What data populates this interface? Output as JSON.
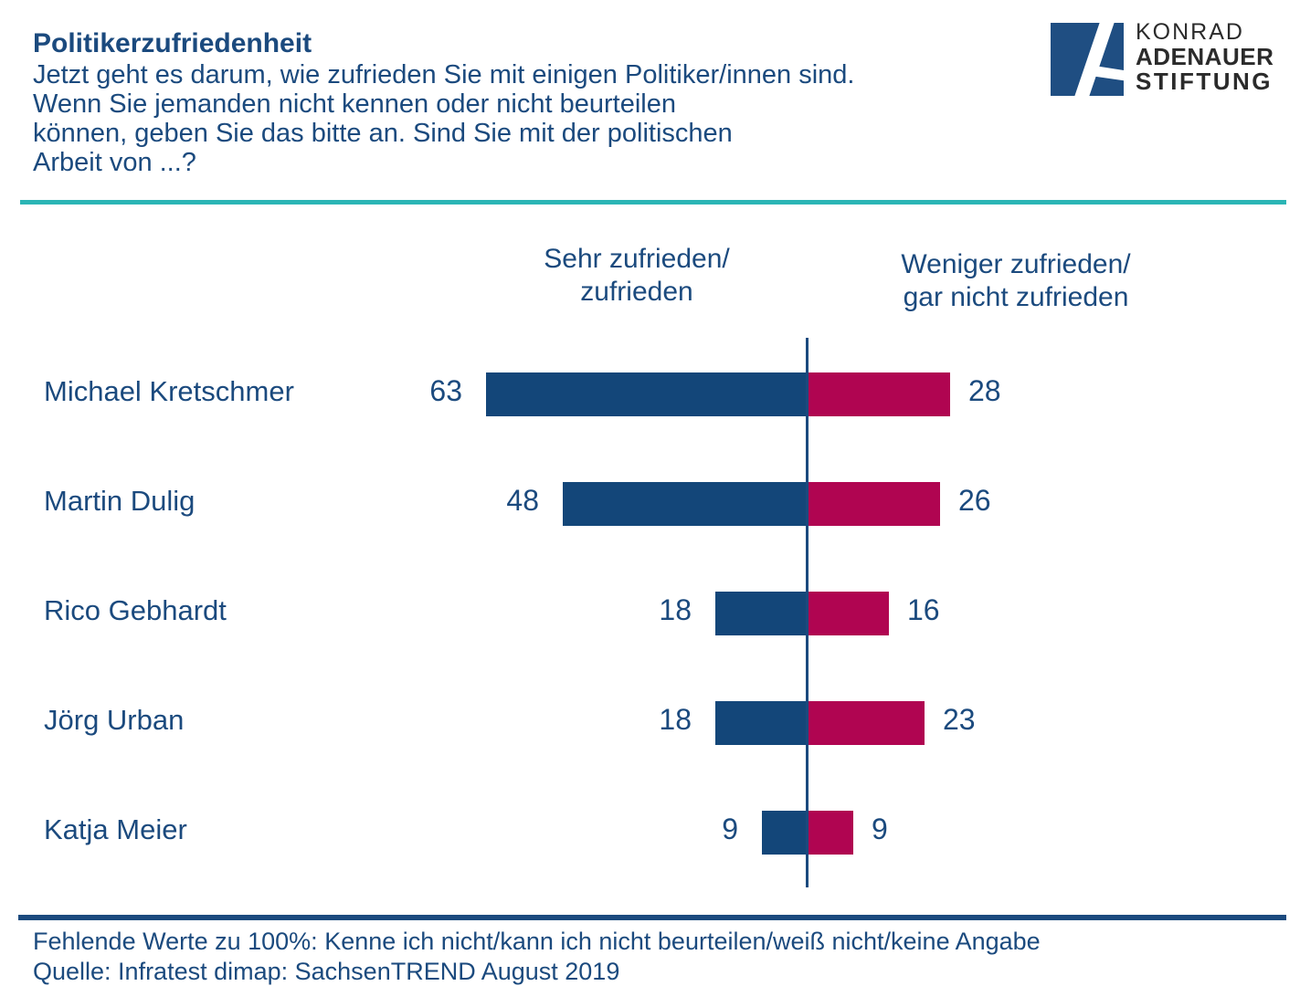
{
  "header": {
    "title": "Politikerzufriedenheit",
    "question": "Jetzt geht es darum, wie zufrieden Sie mit einigen Politiker/innen sind.\nWenn Sie jemanden nicht kennen oder nicht beurteilen\nkönnen, geben Sie das bitte an. Sind Sie mit der politischen\nArbeit von ...?"
  },
  "logo": {
    "line1": "KONRAD",
    "line2": "ADENAUER",
    "line3": "STIFTUNG"
  },
  "chart_data": {
    "type": "bar",
    "variant": "diverging-horizontal",
    "title": "Politikerzufriedenheit",
    "categories": [
      "Michael Kretschmer",
      "Martin Dulig",
      "Rico Gebhardt",
      "Jörg Urban",
      "Katja Meier"
    ],
    "series": [
      {
        "name": "Sehr zufrieden/\nzufrieden",
        "side": "left",
        "color": "#134679",
        "values": [
          63,
          48,
          18,
          18,
          9
        ]
      },
      {
        "name": "Weniger zufrieden/\ngar nicht zufrieden",
        "side": "right",
        "color": "#b00551",
        "values": [
          28,
          26,
          16,
          23,
          9
        ]
      }
    ],
    "value_labels": true,
    "axis": {
      "center_value": 0,
      "xlim": [
        -70,
        40
      ],
      "gridlines": false,
      "center_axis_line": true
    },
    "legend_position": "top-as-column-headers",
    "unit": "percent"
  },
  "footer": {
    "note": "Fehlende Werte zu 100%: Kenne ich nicht/kann ich nicht beurteilen/weiß nicht/keine Angabe",
    "source": "Quelle: Infratest dimap: SachsenTREND August 2019"
  },
  "colors": {
    "text": "#1b4a7e",
    "bar-blue": "#134679",
    "bar-red": "#b00551",
    "teal": "#2bb5b5",
    "rule": "#1b4a7e",
    "logo-blue": "#1f4e82",
    "logo-text": "#2b2b2b"
  }
}
